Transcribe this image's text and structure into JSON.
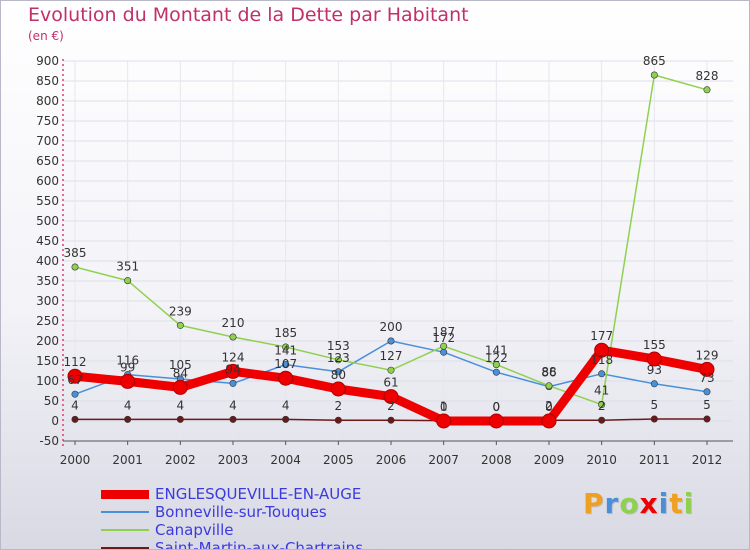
{
  "chart_data": {
    "type": "line",
    "title": "Evolution du Montant de la Dette par Habitant",
    "unit_label": "(en €)",
    "xlabel": "",
    "ylabel": "",
    "ylim": [
      -50,
      900
    ],
    "y_ticks": [
      -50,
      0,
      50,
      100,
      150,
      200,
      250,
      300,
      350,
      400,
      450,
      500,
      550,
      600,
      650,
      700,
      750,
      800,
      850,
      900
    ],
    "categories": [
      "2000",
      "2001",
      "2002",
      "2003",
      "2004",
      "2005",
      "2006",
      "2007",
      "2008",
      "2009",
      "2010",
      "2011",
      "2012"
    ],
    "legend_position": "bottom",
    "series": [
      {
        "name": "Saint-Martin-aux-Chartrains",
        "color": "#6b1a1a",
        "values": [
          4,
          4,
          4,
          4,
          4,
          2,
          2,
          1,
          0,
          2,
          2,
          5,
          5
        ],
        "width": "thin"
      },
      {
        "name": "Bonneville-sur-Touques",
        "color": "#4a90d9",
        "values": [
          67,
          116,
          105,
          94,
          141,
          123,
          200,
          172,
          122,
          86,
          118,
          93,
          73
        ],
        "width": "thin"
      },
      {
        "name": "Canapville",
        "color": "#8fd14f",
        "values": [
          385,
          351,
          239,
          210,
          185,
          153,
          127,
          187,
          141,
          88,
          41,
          865,
          828
        ],
        "width": "thin"
      },
      {
        "name": "ENGLESQUEVILLE-EN-AUGE",
        "color": "#ee0000",
        "values": [
          112,
          99,
          84,
          124,
          107,
          80,
          61,
          0,
          0,
          0,
          177,
          155,
          129
        ],
        "width": "thick"
      }
    ],
    "legend_order": [
      "ENGLESQUEVILLE-EN-AUGE",
      "Bonneville-sur-Touques",
      "Canapville",
      "Saint-Martin-aux-Chartrains"
    ]
  },
  "logo": {
    "letters": [
      "P",
      "r",
      "o",
      "x",
      "i",
      "t",
      "i"
    ],
    "colors": [
      "#f0a020",
      "#4a90d9",
      "#8fd14f",
      "#ee0000",
      "#4a90d9",
      "#f0a020",
      "#8fd14f"
    ]
  }
}
